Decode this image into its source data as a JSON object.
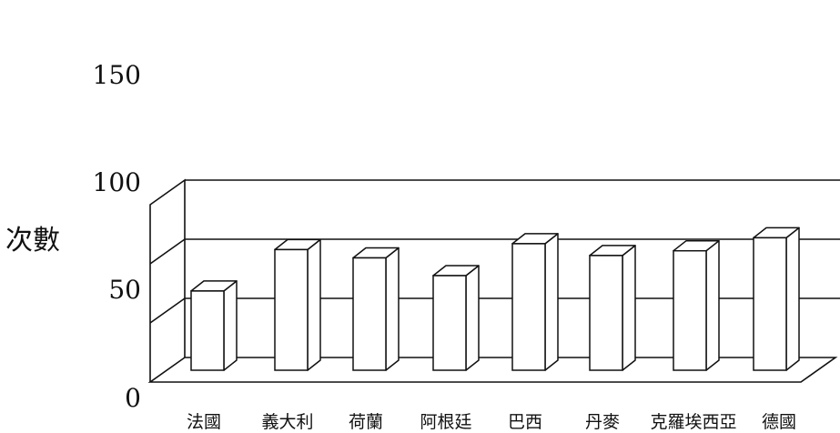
{
  "chart_data": {
    "type": "bar",
    "style": "3d",
    "title": "",
    "xlabel": "",
    "ylabel": "次數",
    "ylim": [
      0,
      150
    ],
    "yticks": [
      "0",
      "50",
      "100",
      "150"
    ],
    "grid": true,
    "categories": [
      "法國",
      "義大利",
      "荷蘭",
      "阿根廷",
      "巴西",
      "丹麥",
      "克羅埃西亞",
      "德國"
    ],
    "values": [
      77,
      112,
      105,
      90,
      117,
      107,
      111,
      122
    ],
    "colors": {
      "bar": "#ffffff",
      "stroke": "#111111",
      "grid": "#111111"
    }
  }
}
